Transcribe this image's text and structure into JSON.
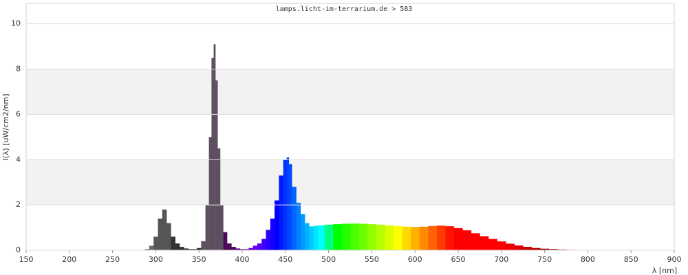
{
  "chart_data": {
    "type": "spectrum",
    "title": "lamps.licht-im-terrarium.de > 583",
    "x_label": "λ [nm]",
    "y_label": "I(λ)  [uW/cm2/nm]",
    "x": [
      150,
      200,
      250,
      280,
      285,
      290,
      295,
      300,
      305,
      310,
      315,
      320,
      325,
      330,
      335,
      340,
      345,
      350,
      355,
      360,
      363,
      366,
      368,
      370,
      373,
      376,
      380,
      385,
      390,
      395,
      400,
      405,
      410,
      415,
      420,
      425,
      430,
      435,
      440,
      445,
      450,
      453,
      455,
      460,
      465,
      470,
      475,
      480,
      485,
      490,
      500,
      510,
      520,
      530,
      540,
      550,
      560,
      570,
      580,
      590,
      600,
      610,
      620,
      630,
      640,
      650,
      660,
      670,
      680,
      690,
      700,
      710,
      720,
      730,
      740,
      750,
      760,
      770,
      780,
      790,
      800,
      850,
      900
    ],
    "values": [
      0,
      0,
      0,
      0,
      0,
      0.05,
      0.2,
      0.6,
      1.4,
      1.8,
      1.2,
      0.6,
      0.3,
      0.15,
      0.08,
      0.05,
      0.05,
      0.1,
      0.4,
      2.0,
      5.0,
      8.5,
      9.1,
      7.5,
      4.5,
      2.0,
      0.8,
      0.3,
      0.15,
      0.08,
      0.05,
      0.05,
      0.1,
      0.2,
      0.3,
      0.5,
      0.9,
      1.4,
      2.2,
      3.3,
      4.0,
      4.1,
      3.8,
      2.8,
      2.1,
      1.6,
      1.2,
      1.05,
      1.08,
      1.1,
      1.13,
      1.15,
      1.17,
      1.18,
      1.17,
      1.15,
      1.13,
      1.1,
      1.07,
      1.04,
      1.03,
      1.04,
      1.07,
      1.09,
      1.06,
      0.98,
      0.88,
      0.75,
      0.62,
      0.5,
      0.39,
      0.29,
      0.21,
      0.15,
      0.1,
      0.07,
      0.05,
      0.03,
      0.02,
      0.005,
      0,
      0,
      0
    ],
    "xlim": [
      150,
      900
    ],
    "xticks": [
      150,
      200,
      250,
      300,
      350,
      400,
      450,
      500,
      550,
      600,
      650,
      700,
      750,
      800,
      850,
      900
    ],
    "ylim": [
      0,
      10.9
    ],
    "yticks": [
      0,
      2,
      4,
      6,
      8,
      10
    ],
    "grid": true
  }
}
